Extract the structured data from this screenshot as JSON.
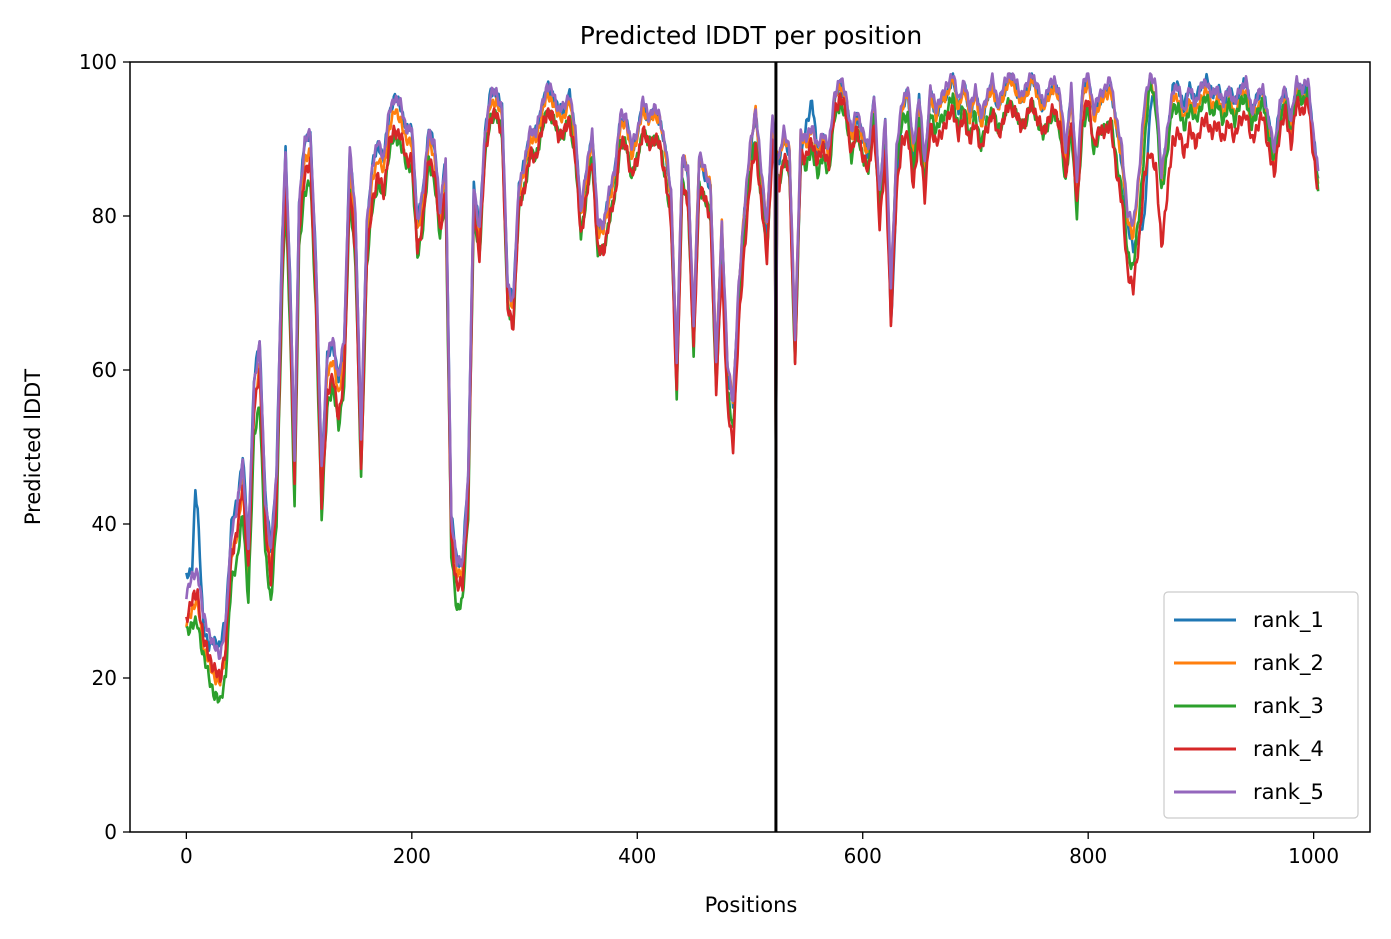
{
  "chart_data": {
    "type": "line",
    "title": "Predicted lDDT per position",
    "xlabel": "Positions",
    "ylabel": "Predicted lDDT",
    "xlim": [
      -50,
      1050
    ],
    "ylim": [
      0,
      100
    ],
    "xticks": [
      0,
      200,
      400,
      600,
      800,
      1000
    ],
    "yticks": [
      0,
      20,
      40,
      60,
      80,
      100
    ],
    "grid": false,
    "legend_position": "lower-right",
    "vertical_line_x": 523,
    "x_start": 0,
    "x_end": 1004,
    "baseline": {
      "x": [
        0,
        5,
        10,
        15,
        20,
        25,
        30,
        35,
        40,
        45,
        50,
        55,
        60,
        65,
        70,
        75,
        80,
        85,
        88,
        92,
        96,
        100,
        105,
        110,
        115,
        120,
        125,
        130,
        135,
        140,
        145,
        150,
        155,
        160,
        165,
        170,
        175,
        180,
        185,
        190,
        195,
        200,
        205,
        210,
        215,
        220,
        225,
        230,
        235,
        240,
        245,
        250,
        255,
        260,
        265,
        270,
        275,
        280,
        285,
        290,
        295,
        300,
        305,
        310,
        315,
        320,
        325,
        330,
        335,
        340,
        345,
        350,
        355,
        360,
        365,
        370,
        375,
        380,
        385,
        390,
        395,
        400,
        405,
        410,
        415,
        420,
        425,
        430,
        435,
        440,
        445,
        450,
        455,
        460,
        465,
        470,
        475,
        480,
        485,
        490,
        495,
        500,
        505,
        510,
        515,
        520,
        523,
        526,
        530,
        535,
        540,
        545,
        550,
        555,
        560,
        565,
        570,
        575,
        580,
        585,
        590,
        595,
        600,
        605,
        610,
        615,
        620,
        625,
        630,
        635,
        640,
        645,
        650,
        655,
        660,
        665,
        670,
        675,
        680,
        685,
        690,
        695,
        700,
        705,
        710,
        715,
        720,
        725,
        730,
        735,
        740,
        745,
        750,
        755,
        760,
        765,
        770,
        775,
        780,
        785,
        790,
        795,
        800,
        805,
        810,
        815,
        820,
        825,
        830,
        835,
        840,
        845,
        850,
        855,
        860,
        865,
        870,
        875,
        880,
        885,
        890,
        895,
        900,
        905,
        910,
        915,
        920,
        925,
        930,
        935,
        940,
        945,
        950,
        955,
        960,
        965,
        970,
        975,
        980,
        985,
        990,
        995,
        1000,
        1004
      ],
      "y": [
        30,
        32,
        33,
        27,
        25,
        23,
        22,
        26,
        38,
        41,
        47,
        36,
        57,
        62,
        42,
        35,
        45,
        75,
        87,
        70,
        47,
        80,
        88,
        89,
        72,
        45,
        60,
        62,
        57,
        62,
        87,
        78,
        50,
        77,
        85,
        88,
        86,
        92,
        94,
        93,
        90,
        90,
        78,
        82,
        90,
        88,
        80,
        86,
        40,
        34,
        34,
        45,
        83,
        77,
        90,
        95,
        95,
        93,
        70,
        68,
        83,
        86,
        90,
        90,
        93,
        96,
        95,
        93,
        93,
        95,
        90,
        80,
        85,
        90,
        78,
        78,
        82,
        85,
        92,
        92,
        88,
        90,
        94,
        92,
        93,
        92,
        88,
        82,
        60,
        87,
        85,
        65,
        87,
        85,
        83,
        60,
        78,
        60,
        55,
        70,
        80,
        88,
        93,
        85,
        78,
        92,
        88,
        87,
        90,
        88,
        63,
        90,
        89,
        91,
        88,
        90,
        88,
        95,
        97,
        95,
        90,
        93,
        90,
        88,
        95,
        82,
        92,
        70,
        88,
        94,
        96,
        88,
        95,
        86,
        96,
        93,
        95,
        96,
        98,
        94,
        97,
        93,
        96,
        92,
        95,
        97,
        94,
        96,
        98,
        97,
        95,
        96,
        98,
        96,
        94,
        96,
        97,
        95,
        88,
        96,
        84,
        96,
        98,
        93,
        95,
        96,
        97,
        92,
        88,
        80,
        78,
        85,
        94,
        98,
        96,
        85,
        90,
        96,
        96,
        93,
        96,
        94,
        96,
        97,
        95,
        96,
        94,
        96,
        94,
        96,
        97,
        93,
        95,
        96,
        92,
        88,
        94,
        96,
        92,
        97,
        96,
        97,
        90,
        85
      ]
    },
    "series": [
      {
        "name": "rank_1",
        "color": "#1f77b4",
        "offsets": {
          "x": [
            0,
            5,
            8,
            15,
            20,
            25,
            540,
            545,
            550,
            555,
            560,
            620,
            628,
            635,
            760,
            820,
            840,
            845,
            850,
            855,
            860,
            870,
            880,
            1004
          ],
          "y": [
            3,
            2,
            12,
            0,
            -1,
            2,
            0,
            -3,
            3,
            4,
            0,
            0,
            -6,
            0,
            0,
            0,
            -2,
            -8,
            -14,
            -4,
            0,
            0,
            1,
            0
          ]
        },
        "noise_amp": 0.6,
        "phase": 1
      },
      {
        "name": "rank_2",
        "color": "#ff7f0e",
        "offsets": {
          "x": [
            0,
            20,
            100,
            400,
            450,
            600,
            650,
            1004
          ],
          "y": [
            -3,
            -3,
            -0.5,
            0,
            1,
            0,
            0,
            -1
          ]
        },
        "noise_amp": 0.6,
        "phase": 2
      },
      {
        "name": "rank_3",
        "color": "#2ca02c",
        "offsets": {
          "x": [
            0,
            10,
            15,
            20,
            60,
            70,
            75,
            230,
            240,
            260,
            460,
            470,
            620,
            628,
            640,
            650,
            850,
            855,
            860,
            1004
          ],
          "y": [
            -4,
            -6,
            -4,
            -5,
            -6,
            -6,
            -5,
            -3,
            -5,
            -2,
            -3,
            -3,
            -2,
            0,
            -3,
            -2,
            -5,
            0,
            -2,
            -1
          ]
        },
        "noise_amp": 0.7,
        "phase": 3
      },
      {
        "name": "rank_4",
        "color": "#d62728",
        "offsets": {
          "x": [
            0,
            100,
            120,
            160,
            240,
            280,
            430,
            470,
            480,
            560,
            600,
            620,
            640,
            650,
            800,
            860,
            880,
            960,
            1004
          ],
          "y": [
            -2,
            -2,
            -3,
            -3,
            -2,
            -2,
            -3,
            -3,
            -5,
            -1,
            -2,
            -4,
            -5,
            -4,
            -3,
            -10,
            -5,
            -3,
            -2
          ]
        },
        "noise_amp": 0.8,
        "phase": 4
      },
      {
        "name": "rank_5",
        "color": "#9467bd",
        "offsets": {
          "x": [
            0,
            40,
            130,
            240,
            400,
            1004
          ],
          "y": [
            1,
            1,
            2,
            1,
            1,
            0.5
          ]
        },
        "noise_amp": 0.6,
        "phase": 5
      }
    ]
  }
}
